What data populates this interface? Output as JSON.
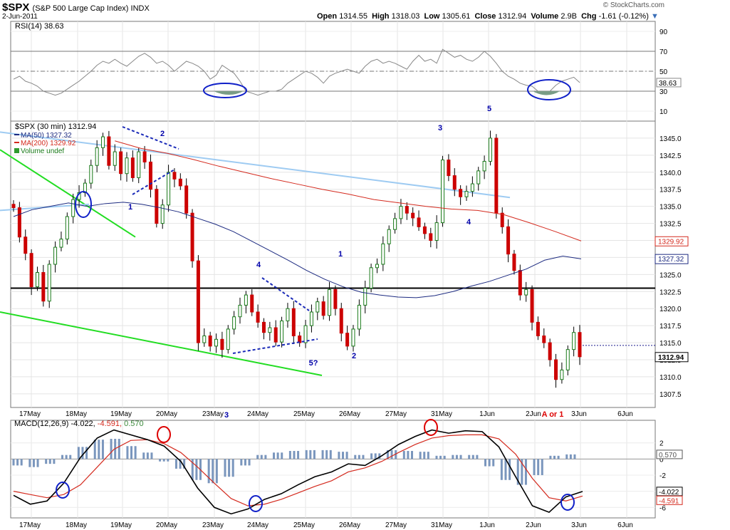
{
  "header": {
    "symbol": "$SPX",
    "name": "(S&P 500 Large Cap Index)",
    "exchange": "INDX",
    "date": "2-Jun-2011",
    "brand": "© StockCharts.com",
    "open_label": "Open",
    "open": "1314.55",
    "high_label": "High",
    "high": "1318.03",
    "low_label": "Low",
    "low": "1305.61",
    "close_label": "Close",
    "close": "1312.94",
    "volume_label": "Volume",
    "volume": "2.9B",
    "chg_label": "Chg",
    "chg": "-1.61 (-0.12%)"
  },
  "colors": {
    "up": "#1a7a1a",
    "down": "#cc0000",
    "ma50": "#1c2a80",
    "ma200": "#d42a1e",
    "trend_green": "#22dd22",
    "trend_blue": "#9ecbf2",
    "rsi": "#888888",
    "annot": "#0000aa"
  },
  "chart_data": [
    {
      "type": "line",
      "title": "RSI(14) 38.63",
      "y_ticks": [
        10,
        30,
        50,
        70,
        90
      ],
      "ylim": [
        0,
        100
      ],
      "current_label": "38.63",
      "values": [
        42,
        45,
        40,
        38,
        35,
        30,
        28,
        26,
        28,
        32,
        36,
        40,
        45,
        50,
        56,
        60,
        58,
        62,
        58,
        55,
        60,
        65,
        68,
        64,
        58,
        60,
        56,
        50,
        55,
        60,
        58,
        55,
        50,
        42,
        46,
        56,
        52,
        48,
        40,
        30,
        28,
        26,
        28,
        30,
        30,
        32,
        38,
        42,
        46,
        50,
        48,
        44,
        38,
        45,
        48,
        50,
        52,
        50,
        48,
        55,
        60,
        62,
        58,
        60,
        58,
        55,
        52,
        60,
        66,
        60,
        62,
        58,
        72,
        68,
        64,
        66,
        62,
        60,
        64,
        70,
        65,
        58,
        50,
        45,
        42,
        38,
        36,
        35,
        30,
        28,
        30,
        36,
        40,
        42,
        44,
        38.63
      ]
    },
    {
      "type": "candlestick",
      "series": [
        {
          "name": "$SPX (30 min) 1312.94"
        },
        {
          "name": "MA(50) 1327.32"
        },
        {
          "name": "MA(200) 1329.92"
        },
        {
          "name": "Volume undef"
        }
      ],
      "x_tick_labels": [
        "17May",
        "18May",
        "19May",
        "20May",
        "23May",
        "24May",
        "25May",
        "26May",
        "27May",
        "31May",
        "1Jun",
        "2Jun",
        "3Jun",
        "6Jun"
      ],
      "y_ticks": [
        1307.5,
        1310.0,
        1312.5,
        1315.0,
        1317.5,
        1320.0,
        1322.5,
        1325.0,
        1327.5,
        1330.0,
        1332.5,
        1335.0,
        1337.5,
        1340.0,
        1342.5,
        1345.0
      ],
      "ylim": [
        1305.5,
        1347.5
      ],
      "last_value_labels": {
        "close": "1312.94",
        "ma50": "1327.32",
        "ma200": "1329.92"
      },
      "horizontal_line": 1323.0,
      "closes": [
        1334.8,
        1330.5,
        1328.1,
        1323.2,
        1325.3,
        1321.1,
        1326.5,
        1329.0,
        1330.2,
        1333.5,
        1336.0,
        1337.0,
        1338.4,
        1341.0,
        1343.6,
        1345.2,
        1341.0,
        1343.0,
        1339.8,
        1342.1,
        1339.2,
        1343.0,
        1341.5,
        1337.5,
        1332.5,
        1335.2,
        1340.0,
        1339.0,
        1338.0,
        1334.0,
        1327.0,
        1315.0,
        1316.0,
        1314.5,
        1315.5,
        1314.0,
        1317.0,
        1318.8,
        1320.5,
        1322.0,
        1319.5,
        1318.0,
        1316.5,
        1317.2,
        1315.1,
        1318.2,
        1320.0,
        1316.0,
        1315.0,
        1317.5,
        1319.5,
        1321.0,
        1319.0,
        1322.8,
        1320.0,
        1316.4,
        1314.5,
        1317.0,
        1320.5,
        1323.0,
        1326.0,
        1326.5,
        1329.5,
        1331.6,
        1333.2,
        1335.0,
        1334.0,
        1333.3,
        1332.0,
        1331.0,
        1330.0,
        1332.6,
        1341.8,
        1339.5,
        1337.5,
        1336.4,
        1337.2,
        1338.3,
        1340.2,
        1341.6,
        1345.0,
        1334.0,
        1332.0,
        1328.0,
        1325.6,
        1322.0,
        1322.8,
        1318.0,
        1316.0,
        1315.0,
        1312.5,
        1309.6,
        1311.0,
        1314.0,
        1316.5,
        1312.94
      ],
      "ma50": [
        1333.5,
        1334.5,
        1335.0,
        1335.5,
        1335.0,
        1335.4,
        1335.6,
        1335.3,
        1334.8,
        1334.2,
        1333.3,
        1332.4,
        1331.3,
        1329.9,
        1328.5,
        1327.1,
        1325.6,
        1324.3,
        1323.2,
        1322.4,
        1322.0,
        1321.7,
        1321.6,
        1321.9,
        1322.5,
        1323.3,
        1324.0,
        1324.9,
        1325.8,
        1327.1,
        1327.7,
        1327.3
      ],
      "ma200": [
        1344.6,
        1343.5,
        1342.8,
        1341.9,
        1340.9,
        1340.0,
        1339.1,
        1338.3,
        1337.5,
        1336.8,
        1336.0,
        1335.5,
        1335.0,
        1334.6,
        1334.4,
        1333.8,
        1332.6,
        1331.3,
        1329.92
      ],
      "annotations": [
        "1",
        "2",
        "4",
        "5?",
        "1",
        "2",
        "3",
        "4",
        "5",
        "A or 1",
        "3"
      ]
    },
    {
      "type": "line",
      "title": "MACD(12,26,9)",
      "macd_value": "-4.022",
      "signal_value": "-4.591",
      "hist_value": "0.570",
      "y_ticks": [
        2,
        0,
        -2,
        -4,
        -6
      ],
      "ylim": [
        -7.3,
        4.8
      ],
      "macd": [
        -4.5,
        -5.6,
        -5.2,
        -3.0,
        0.2,
        2.6,
        3.6,
        3.0,
        2.4,
        1.6,
        -0.3,
        -3.6,
        -6.0,
        -6.8,
        -6.2,
        -5.0,
        -4.3,
        -3.2,
        -2.2,
        -1.6,
        -0.6,
        -0.8,
        0.4,
        1.8,
        2.8,
        3.6,
        3.2,
        3.5,
        3.4,
        1.5,
        -2.2,
        -5.8,
        -6.6,
        -4.7,
        -4.02
      ],
      "signal": [
        -4.0,
        -4.4,
        -4.8,
        -4.4,
        -3.2,
        -1.0,
        1.2,
        2.3,
        2.4,
        1.9,
        0.8,
        -1.0,
        -3.0,
        -4.9,
        -5.8,
        -5.6,
        -5.0,
        -4.2,
        -3.4,
        -2.7,
        -1.6,
        -1.1,
        -0.3,
        0.8,
        1.8,
        2.6,
        2.9,
        3.0,
        3.0,
        2.5,
        0.6,
        -2.4,
        -4.8,
        -5.2,
        -4.59
      ],
      "histogram": [
        -0.8,
        -1.0,
        -0.6,
        0.5,
        1.5,
        2.4,
        2.5,
        1.6,
        0.8,
        -0.3,
        -1.2,
        -2.6,
        -3.0,
        -2.2,
        -0.8,
        0.5,
        0.8,
        1.0,
        1.1,
        1.1,
        0.9,
        0.5,
        0.7,
        1.1,
        1.0,
        0.9,
        0.4,
        0.5,
        0.5,
        -0.9,
        -2.6,
        -3.2,
        -2.0,
        0.4,
        0.57
      ]
    }
  ]
}
